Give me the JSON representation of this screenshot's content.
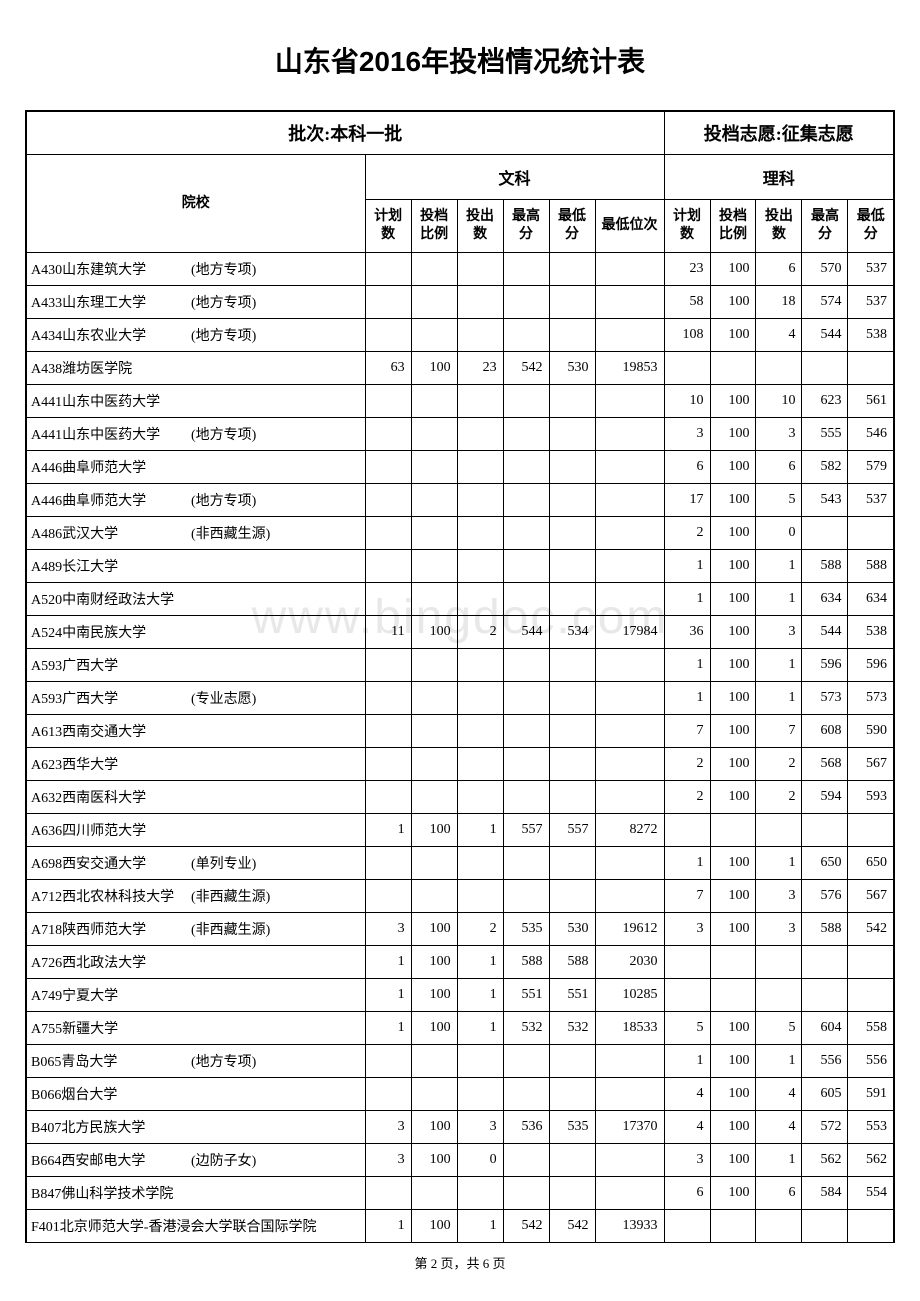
{
  "title": "山东省2016年投档情况统计表",
  "batch_label": "批次:本科一批",
  "volunteer_label": "投档志愿:征集志愿",
  "subject_arts": "文科",
  "subject_science": "理科",
  "columns": {
    "school": "院校",
    "plan_num": "计划数",
    "ratio": "投档比例",
    "put_num": "投出数",
    "max_score": "最高分",
    "min_score": "最低分",
    "min_rank": "最低位次"
  },
  "footer": "第 2 页，共 6 页",
  "watermark": "www.bingdoc.com",
  "rows": [
    {
      "school": "A430山东建筑大学",
      "note": "(地方专项)",
      "arts": {
        "plan": "",
        "ratio": "",
        "put": "",
        "max": "",
        "min": "",
        "rank": ""
      },
      "science": {
        "plan": "23",
        "ratio": "100",
        "put": "6",
        "max": "570",
        "min": "537"
      }
    },
    {
      "school": "A433山东理工大学",
      "note": "(地方专项)",
      "arts": {
        "plan": "",
        "ratio": "",
        "put": "",
        "max": "",
        "min": "",
        "rank": ""
      },
      "science": {
        "plan": "58",
        "ratio": "100",
        "put": "18",
        "max": "574",
        "min": "537"
      }
    },
    {
      "school": "A434山东农业大学",
      "note": "(地方专项)",
      "arts": {
        "plan": "",
        "ratio": "",
        "put": "",
        "max": "",
        "min": "",
        "rank": ""
      },
      "science": {
        "plan": "108",
        "ratio": "100",
        "put": "4",
        "max": "544",
        "min": "538"
      }
    },
    {
      "school": "A438潍坊医学院",
      "note": "",
      "arts": {
        "plan": "63",
        "ratio": "100",
        "put": "23",
        "max": "542",
        "min": "530",
        "rank": "19853"
      },
      "science": {
        "plan": "",
        "ratio": "",
        "put": "",
        "max": "",
        "min": ""
      }
    },
    {
      "school": "A441山东中医药大学",
      "note": "",
      "arts": {
        "plan": "",
        "ratio": "",
        "put": "",
        "max": "",
        "min": "",
        "rank": ""
      },
      "science": {
        "plan": "10",
        "ratio": "100",
        "put": "10",
        "max": "623",
        "min": "561"
      }
    },
    {
      "school": "A441山东中医药大学",
      "note": "(地方专项)",
      "arts": {
        "plan": "",
        "ratio": "",
        "put": "",
        "max": "",
        "min": "",
        "rank": ""
      },
      "science": {
        "plan": "3",
        "ratio": "100",
        "put": "3",
        "max": "555",
        "min": "546"
      }
    },
    {
      "school": "A446曲阜师范大学",
      "note": "",
      "arts": {
        "plan": "",
        "ratio": "",
        "put": "",
        "max": "",
        "min": "",
        "rank": ""
      },
      "science": {
        "plan": "6",
        "ratio": "100",
        "put": "6",
        "max": "582",
        "min": "579"
      }
    },
    {
      "school": "A446曲阜师范大学",
      "note": "(地方专项)",
      "arts": {
        "plan": "",
        "ratio": "",
        "put": "",
        "max": "",
        "min": "",
        "rank": ""
      },
      "science": {
        "plan": "17",
        "ratio": "100",
        "put": "5",
        "max": "543",
        "min": "537"
      }
    },
    {
      "school": "A486武汉大学",
      "note": "(非西藏生源)",
      "arts": {
        "plan": "",
        "ratio": "",
        "put": "",
        "max": "",
        "min": "",
        "rank": ""
      },
      "science": {
        "plan": "2",
        "ratio": "100",
        "put": "0",
        "max": "",
        "min": ""
      }
    },
    {
      "school": "A489长江大学",
      "note": "",
      "arts": {
        "plan": "",
        "ratio": "",
        "put": "",
        "max": "",
        "min": "",
        "rank": ""
      },
      "science": {
        "plan": "1",
        "ratio": "100",
        "put": "1",
        "max": "588",
        "min": "588"
      }
    },
    {
      "school": "A520中南财经政法大学",
      "note": "",
      "arts": {
        "plan": "",
        "ratio": "",
        "put": "",
        "max": "",
        "min": "",
        "rank": ""
      },
      "science": {
        "plan": "1",
        "ratio": "100",
        "put": "1",
        "max": "634",
        "min": "634"
      }
    },
    {
      "school": "A524中南民族大学",
      "note": "",
      "arts": {
        "plan": "11",
        "ratio": "100",
        "put": "2",
        "max": "544",
        "min": "534",
        "rank": "17984"
      },
      "science": {
        "plan": "36",
        "ratio": "100",
        "put": "3",
        "max": "544",
        "min": "538"
      }
    },
    {
      "school": "A593广西大学",
      "note": "",
      "arts": {
        "plan": "",
        "ratio": "",
        "put": "",
        "max": "",
        "min": "",
        "rank": ""
      },
      "science": {
        "plan": "1",
        "ratio": "100",
        "put": "1",
        "max": "596",
        "min": "596"
      }
    },
    {
      "school": "A593广西大学",
      "note": "(专业志愿)",
      "arts": {
        "plan": "",
        "ratio": "",
        "put": "",
        "max": "",
        "min": "",
        "rank": ""
      },
      "science": {
        "plan": "1",
        "ratio": "100",
        "put": "1",
        "max": "573",
        "min": "573"
      }
    },
    {
      "school": "A613西南交通大学",
      "note": "",
      "arts": {
        "plan": "",
        "ratio": "",
        "put": "",
        "max": "",
        "min": "",
        "rank": ""
      },
      "science": {
        "plan": "7",
        "ratio": "100",
        "put": "7",
        "max": "608",
        "min": "590"
      }
    },
    {
      "school": "A623西华大学",
      "note": "",
      "arts": {
        "plan": "",
        "ratio": "",
        "put": "",
        "max": "",
        "min": "",
        "rank": ""
      },
      "science": {
        "plan": "2",
        "ratio": "100",
        "put": "2",
        "max": "568",
        "min": "567"
      }
    },
    {
      "school": "A632西南医科大学",
      "note": "",
      "arts": {
        "plan": "",
        "ratio": "",
        "put": "",
        "max": "",
        "min": "",
        "rank": ""
      },
      "science": {
        "plan": "2",
        "ratio": "100",
        "put": "2",
        "max": "594",
        "min": "593"
      }
    },
    {
      "school": "A636四川师范大学",
      "note": "",
      "arts": {
        "plan": "1",
        "ratio": "100",
        "put": "1",
        "max": "557",
        "min": "557",
        "rank": "8272"
      },
      "science": {
        "plan": "",
        "ratio": "",
        "put": "",
        "max": "",
        "min": ""
      }
    },
    {
      "school": "A698西安交通大学",
      "note": "(单列专业)",
      "arts": {
        "plan": "",
        "ratio": "",
        "put": "",
        "max": "",
        "min": "",
        "rank": ""
      },
      "science": {
        "plan": "1",
        "ratio": "100",
        "put": "1",
        "max": "650",
        "min": "650"
      }
    },
    {
      "school": "A712西北农林科技大学",
      "note": "(非西藏生源)",
      "arts": {
        "plan": "",
        "ratio": "",
        "put": "",
        "max": "",
        "min": "",
        "rank": ""
      },
      "science": {
        "plan": "7",
        "ratio": "100",
        "put": "3",
        "max": "576",
        "min": "567"
      }
    },
    {
      "school": "A718陕西师范大学",
      "note": "(非西藏生源)",
      "arts": {
        "plan": "3",
        "ratio": "100",
        "put": "2",
        "max": "535",
        "min": "530",
        "rank": "19612"
      },
      "science": {
        "plan": "3",
        "ratio": "100",
        "put": "3",
        "max": "588",
        "min": "542"
      }
    },
    {
      "school": "A726西北政法大学",
      "note": "",
      "arts": {
        "plan": "1",
        "ratio": "100",
        "put": "1",
        "max": "588",
        "min": "588",
        "rank": "2030"
      },
      "science": {
        "plan": "",
        "ratio": "",
        "put": "",
        "max": "",
        "min": ""
      }
    },
    {
      "school": "A749宁夏大学",
      "note": "",
      "arts": {
        "plan": "1",
        "ratio": "100",
        "put": "1",
        "max": "551",
        "min": "551",
        "rank": "10285"
      },
      "science": {
        "plan": "",
        "ratio": "",
        "put": "",
        "max": "",
        "min": ""
      }
    },
    {
      "school": "A755新疆大学",
      "note": "",
      "arts": {
        "plan": "1",
        "ratio": "100",
        "put": "1",
        "max": "532",
        "min": "532",
        "rank": "18533"
      },
      "science": {
        "plan": "5",
        "ratio": "100",
        "put": "5",
        "max": "604",
        "min": "558"
      }
    },
    {
      "school": "B065青岛大学",
      "note": "(地方专项)",
      "arts": {
        "plan": "",
        "ratio": "",
        "put": "",
        "max": "",
        "min": "",
        "rank": ""
      },
      "science": {
        "plan": "1",
        "ratio": "100",
        "put": "1",
        "max": "556",
        "min": "556"
      }
    },
    {
      "school": "B066烟台大学",
      "note": "",
      "arts": {
        "plan": "",
        "ratio": "",
        "put": "",
        "max": "",
        "min": "",
        "rank": ""
      },
      "science": {
        "plan": "4",
        "ratio": "100",
        "put": "4",
        "max": "605",
        "min": "591"
      }
    },
    {
      "school": "B407北方民族大学",
      "note": "",
      "arts": {
        "plan": "3",
        "ratio": "100",
        "put": "3",
        "max": "536",
        "min": "535",
        "rank": "17370"
      },
      "science": {
        "plan": "4",
        "ratio": "100",
        "put": "4",
        "max": "572",
        "min": "553"
      }
    },
    {
      "school": "B664西安邮电大学",
      "note": "(边防子女)",
      "arts": {
        "plan": "3",
        "ratio": "100",
        "put": "0",
        "max": "",
        "min": "",
        "rank": ""
      },
      "science": {
        "plan": "3",
        "ratio": "100",
        "put": "1",
        "max": "562",
        "min": "562"
      }
    },
    {
      "school": "B847佛山科学技术学院",
      "note": "",
      "arts": {
        "plan": "",
        "ratio": "",
        "put": "",
        "max": "",
        "min": "",
        "rank": ""
      },
      "science": {
        "plan": "6",
        "ratio": "100",
        "put": "6",
        "max": "584",
        "min": "554"
      }
    },
    {
      "school": "F401北京师范大学-香港浸会大学联合国际学院",
      "note": "",
      "arts": {
        "plan": "1",
        "ratio": "100",
        "put": "1",
        "max": "542",
        "min": "542",
        "rank": "13933"
      },
      "science": {
        "plan": "",
        "ratio": "",
        "put": "",
        "max": "",
        "min": ""
      }
    }
  ]
}
